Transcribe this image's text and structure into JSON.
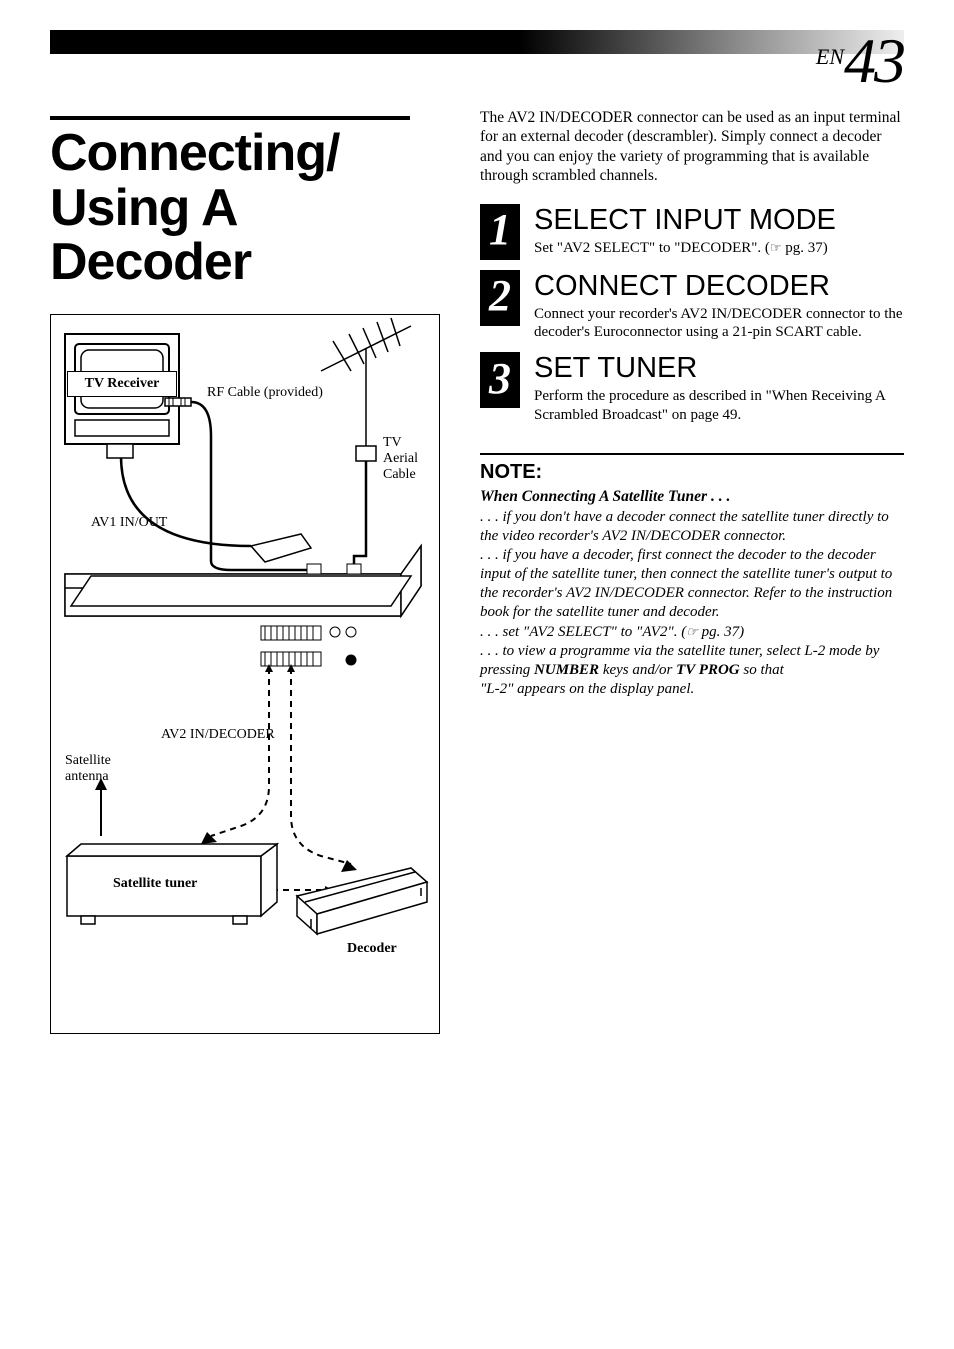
{
  "page": {
    "lang_prefix": "EN",
    "number": "43"
  },
  "title": "Connecting/\nUsing A\nDecoder",
  "diagram": {
    "labels": {
      "tv_receiver": "TV Receiver",
      "rf_cable": "RF Cable (provided)",
      "tv_aerial": "TV\nAerial\nCable",
      "av1": "AV1 IN/OUT",
      "av2": "AV2 IN/DECODER",
      "sat_antenna": "Satellite\nantenna",
      "sat_tuner": "Satellite tuner",
      "decoder": "Decoder"
    }
  },
  "intro": "The AV2 IN/DECODER connector can be used as an input terminal for an external decoder (descrambler). Simply connect a decoder and you can enjoy the variety of programming that is available through scrambled channels.",
  "steps": [
    {
      "num": "1",
      "title": "SELECT INPUT MODE",
      "text_pre": "Set \"AV2 SELECT\" to \"DECODER\". (",
      "text_post": " pg. 37)"
    },
    {
      "num": "2",
      "title": "CONNECT DECODER",
      "text": "Connect your recorder's AV2 IN/DECODER connector to the decoder's Euroconnector using a 21-pin SCART cable."
    },
    {
      "num": "3",
      "title": "SET TUNER",
      "text": "Perform the procedure as described in \"When Receiving A Scrambled Broadcast\" on page 49."
    }
  ],
  "note": {
    "heading": "NOTE:",
    "subheading": "When Connecting A Satellite Tuner . . .",
    "line1": ". . . if you don't have a decoder connect the satellite tuner directly to the video recorder's AV2 IN/DECODER connector.",
    "line2": ". . . if you have a decoder, first connect the decoder to the decoder input of the satellite tuner, then connect the satellite tuner's output to the recorder's AV2 IN/DECODER connector. Refer to the instruction book for the satellite tuner and decoder.",
    "line3_pre": ". . . set \"AV2 SELECT\" to \"AV2\". (",
    "line3_post": " pg. 37)",
    "line4_pre": ". . . to view a programme via the satellite tuner, select L-2 mode by pressing ",
    "line4_b1": "NUMBER",
    "line4_mid": " keys and/or ",
    "line4_b2": "TV PROG",
    "line4_post": " so that",
    "line5": "\"L-2\" appears on the display panel."
  },
  "style": {
    "bg": "#ffffff",
    "text": "#000000",
    "header_gradient_from": "#000000",
    "header_gradient_to": "#eeeeee",
    "title_fontsize": 52,
    "step_title_fontsize": 29,
    "body_fontsize": 15.5,
    "note_title_fontsize": 20
  }
}
